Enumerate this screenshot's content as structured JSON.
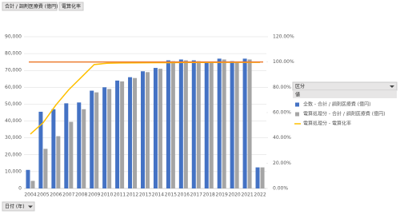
{
  "chart_data": {
    "type": "bar",
    "field_buttons": [
      "合計 / 調剤医療費 (億円)",
      "電算化率"
    ],
    "x_field_button": "日付 (年)",
    "legend_title": "区分",
    "legend_subtitle": "値",
    "categories": [
      "2004",
      "2005",
      "2006",
      "2007",
      "2008",
      "2009",
      "2010",
      "2011",
      "2012",
      "2013",
      "2014",
      "2015",
      "2016",
      "2017",
      "2018",
      "2019",
      "2020",
      "2021",
      "2022"
    ],
    "series": [
      {
        "name": "全数 - 合計 / 調剤医療費 (億円)",
        "type": "bar",
        "axis": "y",
        "color": "#4472c4",
        "values": [
          11000,
          45500,
          47000,
          50500,
          51000,
          58000,
          60000,
          64000,
          66000,
          69500,
          71500,
          76000,
          76500,
          76000,
          75000,
          77000,
          75500,
          77000,
          12500
        ]
      },
      {
        "name": "電算処理分 - 合計 / 調剤医療費 (億円)",
        "type": "bar",
        "axis": "y",
        "color": "#a5a5a5",
        "values": [
          4500,
          23500,
          31000,
          39500,
          47000,
          57000,
          59000,
          63500,
          65500,
          69000,
          71000,
          75500,
          76000,
          75500,
          74500,
          76500,
          75000,
          76500,
          12500
        ]
      },
      {
        "name": "電算処理分 - 電算化率",
        "type": "line",
        "axis": "y2",
        "color": "#ffc000",
        "values": [
          43,
          52,
          66,
          78,
          88,
          98,
          99,
          99.2,
          99.3,
          99.4,
          99.5,
          99.5,
          99.6,
          99.6,
          99.6,
          99.7,
          99.7,
          99.7,
          99.7
        ]
      }
    ],
    "hline": {
      "value": 100,
      "axis": "y2",
      "color": "#ed7d31"
    },
    "ylim": [
      0,
      90000
    ],
    "yticks": [
      0,
      {
        "value": 10000,
        "label": "10,000"
      },
      {
        "value": 20000,
        "label": "20,000"
      },
      {
        "value": 30000,
        "label": "30,000"
      },
      {
        "value": 40000,
        "label": "40,000"
      },
      {
        "value": 50000,
        "label": "50,000"
      },
      {
        "value": 60000,
        "label": "60,000"
      },
      {
        "value": 70000,
        "label": "70,000"
      },
      {
        "value": 80000,
        "label": "80,000"
      },
      {
        "value": 90000,
        "label": "90,000"
      }
    ],
    "y2lim": [
      0,
      120
    ],
    "y2ticks": [
      {
        "value": 0,
        "label": "0.00%"
      },
      {
        "value": 20,
        "label": "20.00%"
      },
      {
        "value": 40,
        "label": "40.00%"
      },
      {
        "value": 60,
        "label": "60.00%"
      },
      {
        "value": 80,
        "label": "80.00%"
      },
      {
        "value": 100,
        "label": "100.00%"
      },
      {
        "value": 120,
        "label": "120.00%"
      }
    ]
  }
}
